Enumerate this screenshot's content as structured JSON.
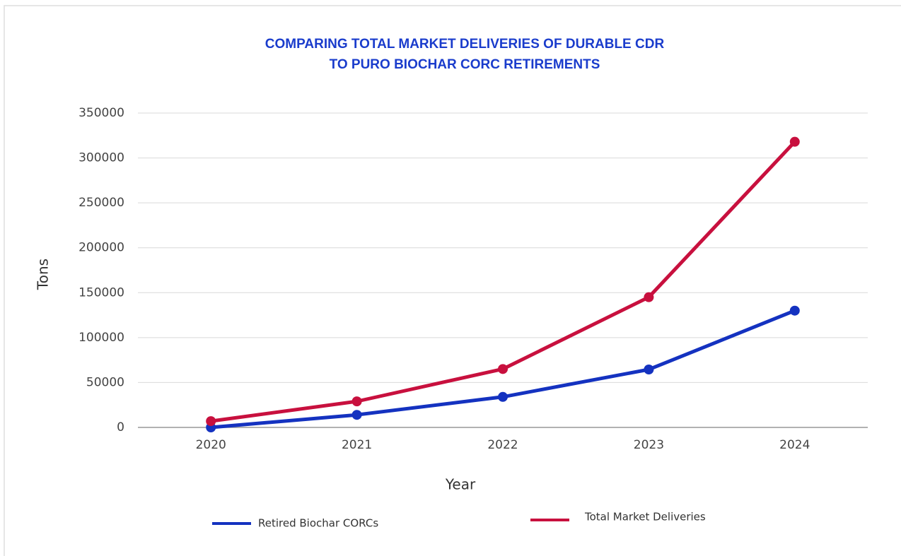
{
  "chart_data": {
    "type": "line",
    "title": [
      "COMPARING TOTAL MARKET DELIVERIES OF DURABLE CDR",
      "TO PURO BIOCHAR CORC RETIREMENTS"
    ],
    "x_label": "Year",
    "y_label": "Tons",
    "categories": [
      "2020",
      "2021",
      "2022",
      "2023",
      "2024"
    ],
    "series": [
      {
        "name": "Retired Biochar CORCs",
        "color": "#1432c0",
        "values": [
          0,
          14000,
          34000,
          64500,
          130000
        ]
      },
      {
        "name": "Total Market Deliveries",
        "color": "#c8103e",
        "values": [
          7000,
          29000,
          65000,
          145000,
          318000
        ]
      }
    ],
    "ylim": [
      0,
      350000
    ],
    "yticks": [
      0,
      50000,
      100000,
      150000,
      200000,
      250000,
      300000,
      350000
    ],
    "grid": true,
    "legend": "bottom"
  }
}
